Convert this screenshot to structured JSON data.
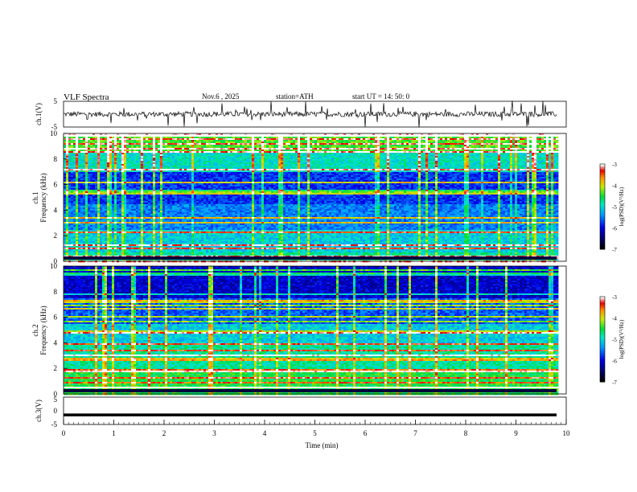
{
  "header": {
    "title": "VLF  Spectra",
    "date": "Nov.6  , 2025",
    "station": "station=ATH",
    "start": "start  UT  =   14: 50: 0"
  },
  "chart_data": [
    {
      "type": "line",
      "name": "ch1-waveform",
      "ylabel": "ch.1(V)",
      "ylim": [
        -5,
        5
      ],
      "yticks": [
        "5",
        "-5"
      ],
      "x_range_min": [
        0,
        9.83
      ],
      "approx_level_V": 0,
      "noise_amplitude_V": 1
    },
    {
      "type": "heatmap",
      "name": "ch1-spectrogram",
      "ylabel": "ch.1\nFrequency  (kHz)",
      "ylim_kHz": [
        0,
        10
      ],
      "yticks": [
        "0",
        "2",
        "4",
        "6",
        "8",
        "10"
      ],
      "x_range_min": [
        0,
        9.83
      ],
      "colorbar": {
        "label": "log(PSD)(V²/Hz)",
        "range": [
          -7,
          -3
        ],
        "ticks": [
          "-3",
          "-4",
          "-5",
          "-6",
          "-7"
        ]
      }
    },
    {
      "type": "heatmap",
      "name": "ch2-spectrogram",
      "ylabel": "ch.2\nFrequency  (kHz)",
      "ylim_kHz": [
        0,
        10
      ],
      "yticks": [
        "0",
        "2",
        "4",
        "6",
        "8",
        "10"
      ],
      "x_range_min": [
        0,
        9.83
      ],
      "colorbar": {
        "label": "log(PSD)(V²/Hz)",
        "range": [
          -7,
          -3
        ],
        "ticks": [
          "-3",
          "-4",
          "-5",
          "-6",
          "-7"
        ]
      }
    },
    {
      "type": "line",
      "name": "ch3-waveform",
      "ylabel": "ch.3(V)",
      "ylim": [
        -5,
        5
      ],
      "yticks": [
        "5",
        "0",
        "-5"
      ],
      "x_range_min": [
        0,
        9.83
      ],
      "approx_level_V": -1.5
    }
  ],
  "xaxis": {
    "label": "Time  (min)",
    "ticks": [
      "0",
      "1",
      "2",
      "3",
      "4",
      "5",
      "6",
      "7",
      "8",
      "9",
      "10"
    ],
    "range": [
      0,
      10
    ]
  }
}
